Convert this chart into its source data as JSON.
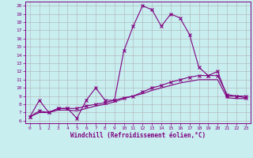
{
  "xlabel": "Windchill (Refroidissement éolien,°C)",
  "bg_color": "#c8eef0",
  "line_color": "#800080",
  "grid_color": "#b0b0b0",
  "xlim": [
    -0.5,
    23.5
  ],
  "ylim": [
    5.7,
    20.5
  ],
  "yticks": [
    6,
    7,
    8,
    9,
    10,
    11,
    12,
    13,
    14,
    15,
    16,
    17,
    18,
    19,
    20
  ],
  "xticks": [
    0,
    1,
    2,
    3,
    4,
    5,
    6,
    7,
    8,
    9,
    10,
    11,
    12,
    13,
    14,
    15,
    16,
    17,
    18,
    19,
    20,
    21,
    22,
    23
  ],
  "line1_x": [
    0,
    1,
    2,
    3,
    4,
    5,
    6,
    7,
    8,
    9,
    10,
    11,
    12,
    13,
    14,
    15,
    16,
    17,
    18,
    19,
    20,
    21,
    22,
    23
  ],
  "line1_y": [
    6.5,
    8.5,
    7.0,
    7.5,
    7.5,
    6.3,
    8.5,
    10.0,
    8.5,
    8.5,
    14.5,
    17.5,
    20.0,
    19.5,
    17.5,
    19.0,
    18.5,
    16.5,
    12.5,
    11.5,
    12.0,
    9.0,
    9.0,
    9.0
  ],
  "line2_x": [
    0,
    1,
    2,
    3,
    4,
    5,
    6,
    7,
    8,
    9,
    10,
    11,
    12,
    13,
    14,
    15,
    16,
    17,
    18,
    19,
    20,
    21,
    22,
    23
  ],
  "line2_y": [
    6.5,
    7.2,
    7.0,
    7.5,
    7.5,
    7.5,
    7.8,
    8.0,
    8.2,
    8.5,
    8.8,
    9.0,
    9.5,
    10.0,
    10.3,
    10.7,
    11.0,
    11.3,
    11.5,
    11.5,
    11.5,
    9.2,
    9.0,
    8.8
  ],
  "line3_x": [
    0,
    1,
    2,
    3,
    4,
    5,
    6,
    7,
    8,
    9,
    10,
    11,
    12,
    13,
    14,
    15,
    16,
    17,
    18,
    19,
    20,
    21,
    22,
    23
  ],
  "line3_y": [
    6.5,
    7.0,
    7.0,
    7.3,
    7.3,
    7.2,
    7.5,
    7.8,
    8.0,
    8.3,
    8.7,
    9.0,
    9.3,
    9.7,
    10.0,
    10.3,
    10.6,
    10.8,
    11.0,
    11.0,
    11.0,
    8.8,
    8.7,
    8.7
  ]
}
